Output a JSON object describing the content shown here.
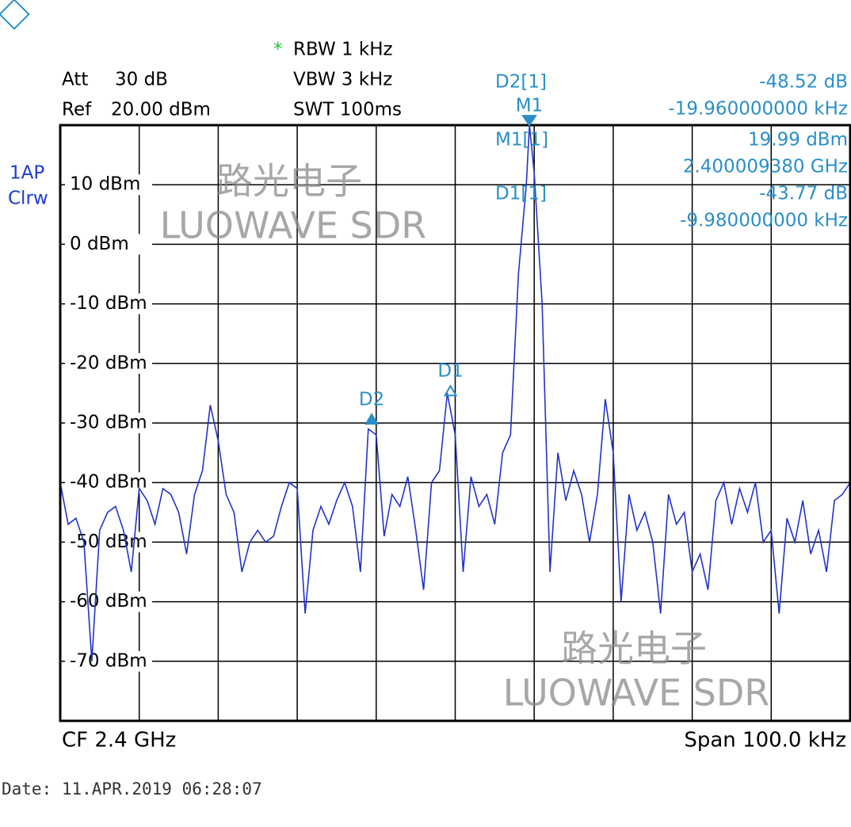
{
  "header": {
    "att_label": "Att",
    "att": "30 dB",
    "ref_label": "Ref",
    "ref": "20.00 dBm",
    "star": "*",
    "rbw": "RBW 1 kHz",
    "vbw": "VBW 3 kHz",
    "swt": "SWT 100ms",
    "trace_mode": "1AP",
    "trace_detector": "Clrw"
  },
  "marker_table": [
    {
      "label": "D2[1]",
      "level": "-48.52 dB",
      "freq": "-19.960000000 kHz"
    },
    {
      "label": "M1[1]",
      "level": "19.99 dBm",
      "freq": "2.400009380 GHz"
    },
    {
      "label": "D1[1]",
      "level": "-43.77 dB",
      "freq": "-9.980000000 kHz"
    }
  ],
  "footer": {
    "cf": "CF 2.4 GHz",
    "span": "Span 100.0 kHz",
    "date": "Date: 11.APR.2019  06:28:07"
  },
  "watermarks": {
    "cn": "路光电子",
    "en": "LUOWAVE SDR"
  },
  "chart_data": {
    "type": "line",
    "x": [
      -50,
      -49,
      -48,
      -47,
      -46,
      -45,
      -44,
      -43,
      -42,
      -41,
      -40,
      -39,
      -38,
      -37,
      -36,
      -35,
      -34,
      -33,
      -32,
      -31,
      -30,
      -29,
      -28,
      -27,
      -26,
      -25,
      -24,
      -23,
      -22,
      -21,
      -20,
      -19,
      -18,
      -17,
      -16,
      -15,
      -14,
      -13,
      -12,
      -11,
      -10,
      -9,
      -8,
      -7,
      -6,
      -5,
      -4,
      -3,
      -2,
      -1,
      0,
      1,
      2,
      3,
      4,
      5,
      6,
      7,
      8,
      9,
      9.4,
      10,
      11,
      12,
      13,
      14,
      15,
      16,
      17,
      18,
      19,
      20,
      21,
      22,
      23,
      24,
      25,
      26,
      27,
      28,
      29,
      30,
      31,
      32,
      33,
      34,
      35,
      36,
      37,
      38,
      39,
      40,
      41,
      42,
      43,
      44,
      45,
      46,
      47,
      48,
      49,
      50
    ],
    "series": [
      {
        "name": "1AP",
        "color": "#2233cc",
        "values": [
          -40,
          -47,
          -46,
          -50,
          -70,
          -48,
          -45,
          -44,
          -48,
          -55,
          -41,
          -43,
          -47,
          -41,
          -42,
          -45,
          -52,
          -42,
          -38,
          -27,
          -33,
          -42,
          -45,
          -55,
          -50,
          -48,
          -50,
          -49,
          -44,
          -40,
          -41,
          -62,
          -48,
          -44,
          -47,
          -43,
          -40,
          -44,
          -55,
          -31,
          -32,
          -49,
          -42,
          -44,
          -39,
          -48,
          -58,
          -40,
          -38,
          -25,
          -32,
          -55,
          -39,
          -44,
          -42,
          -47,
          -35,
          -32,
          -5,
          10,
          19.99,
          12,
          -10,
          -55,
          -35,
          -43,
          -38,
          -42,
          -50,
          -42,
          -26,
          -35,
          -60,
          -42,
          -48,
          -45,
          -50,
          -62,
          -42,
          -47,
          -45,
          -55,
          -52,
          -58,
          -43,
          -40,
          -47,
          -41,
          -45,
          -40,
          -50,
          -48,
          -62,
          -46,
          -50,
          -43,
          -52,
          -48,
          -55,
          -43,
          -42,
          -40
        ]
      }
    ],
    "xlim": [
      -50,
      50
    ],
    "ylim": [
      -80,
      20
    ],
    "xticks": [
      -50,
      -40,
      -30,
      -20,
      -10,
      0,
      10,
      20,
      30,
      40,
      50
    ],
    "yticks": [
      {
        "value": 10,
        "label": "10 dBm"
      },
      {
        "value": 0,
        "label": "0 dBm"
      },
      {
        "value": -10,
        "label": "-10 dBm"
      },
      {
        "value": -20,
        "label": "-20 dBm"
      },
      {
        "value": -30,
        "label": "-30 dBm"
      },
      {
        "value": -40,
        "label": "-40 dBm"
      },
      {
        "value": -50,
        "label": "-50 dBm"
      },
      {
        "value": -60,
        "label": "-60 dBm"
      },
      {
        "value": -70,
        "label": "-70 dBm"
      }
    ],
    "grid": true,
    "marker_color": "#2a8fc8",
    "markers": [
      {
        "name": "M1",
        "x": 9.38,
        "y": 19.99
      },
      {
        "name": "D1",
        "x": -0.6,
        "y": -23.78
      },
      {
        "name": "D2",
        "x": -10.58,
        "y": -28.53
      }
    ]
  }
}
